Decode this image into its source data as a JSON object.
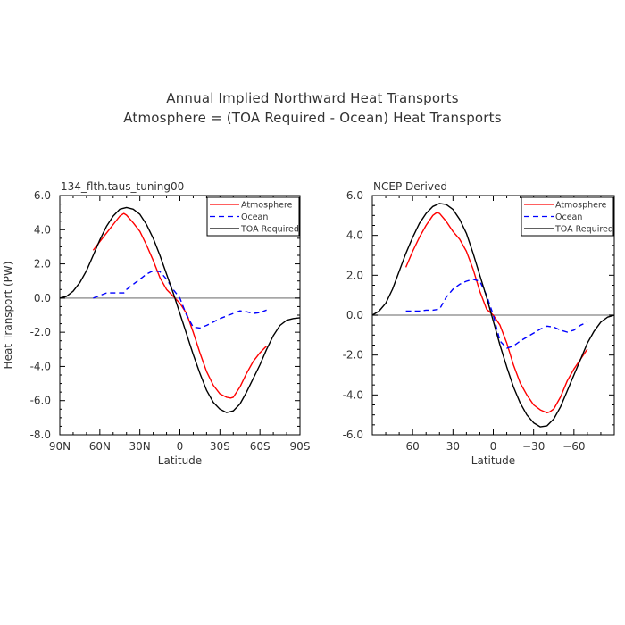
{
  "figure": {
    "title_line1": "Annual Implied Northward Heat Transports",
    "title_line2": "Atmosphere = (TOA Required - Ocean) Heat Transports"
  },
  "chart_data": [
    {
      "type": "line",
      "title": "134_flth.taus_tuning00",
      "xlabel": "Latitude",
      "ylabel": "Heat Transport (PW)",
      "xlim": [
        90,
        -90
      ],
      "ylim": [
        -8,
        6
      ],
      "x_ticks": [
        90,
        60,
        30,
        0,
        -30,
        -60,
        -90
      ],
      "x_tick_labels": [
        "90N",
        "60N",
        "30N",
        "0",
        "30S",
        "60S",
        "90S"
      ],
      "y_ticks": [
        -8,
        -6,
        -4,
        -2,
        0,
        2,
        4,
        6
      ],
      "y_tick_labels": [
        "-8.0",
        "-6.0",
        "-4.0",
        "-2.0",
        "0.0",
        "2.0",
        "4.0",
        "6.0"
      ],
      "legend_position": "top-right",
      "zero_line": true,
      "series": [
        {
          "name": "Atmosphere",
          "color": "#ff0000",
          "dash": "solid",
          "x": [
            65,
            60,
            55,
            50,
            45,
            42,
            40,
            35,
            30,
            25,
            20,
            15,
            10,
            5,
            0,
            -5,
            -10,
            -15,
            -20,
            -25,
            -30,
            -35,
            -38,
            -40,
            -45,
            -50,
            -55,
            -60,
            -65
          ],
          "y": [
            2.8,
            3.3,
            3.8,
            4.3,
            4.8,
            4.95,
            4.85,
            4.4,
            3.9,
            3.1,
            2.2,
            1.2,
            0.5,
            0.1,
            -0.3,
            -0.9,
            -2.0,
            -3.2,
            -4.3,
            -5.1,
            -5.6,
            -5.8,
            -5.85,
            -5.8,
            -5.2,
            -4.4,
            -3.7,
            -3.2,
            -2.8
          ]
        },
        {
          "name": "Ocean",
          "color": "#0000ff",
          "dash": "dashed",
          "x": [
            65,
            60,
            55,
            50,
            45,
            42,
            40,
            35,
            30,
            25,
            20,
            15,
            10,
            5,
            0,
            -5,
            -10,
            -15,
            -20,
            -25,
            -30,
            -35,
            -40,
            -45,
            -50,
            -55,
            -60,
            -65
          ],
          "y": [
            0.0,
            0.15,
            0.3,
            0.3,
            0.3,
            0.3,
            0.5,
            0.8,
            1.1,
            1.4,
            1.6,
            1.55,
            1.1,
            0.5,
            0.0,
            -1.0,
            -1.7,
            -1.75,
            -1.6,
            -1.4,
            -1.2,
            -1.05,
            -0.9,
            -0.75,
            -0.8,
            -0.9,
            -0.85,
            -0.7
          ]
        },
        {
          "name": "TOA Required",
          "color": "#000000",
          "dash": "solid",
          "x": [
            90,
            85,
            80,
            75,
            70,
            65,
            60,
            55,
            50,
            45,
            40,
            35,
            30,
            25,
            20,
            15,
            10,
            5,
            0,
            -5,
            -10,
            -15,
            -20,
            -25,
            -30,
            -35,
            -40,
            -45,
            -50,
            -55,
            -60,
            -65,
            -70,
            -75,
            -80,
            -85,
            -90
          ],
          "y": [
            0.0,
            0.1,
            0.4,
            0.9,
            1.6,
            2.5,
            3.4,
            4.2,
            4.8,
            5.2,
            5.3,
            5.2,
            4.9,
            4.3,
            3.5,
            2.5,
            1.4,
            0.3,
            -0.9,
            -2.1,
            -3.3,
            -4.4,
            -5.4,
            -6.1,
            -6.5,
            -6.7,
            -6.6,
            -6.2,
            -5.5,
            -4.7,
            -3.9,
            -3.0,
            -2.2,
            -1.6,
            -1.3,
            -1.2,
            -1.15
          ]
        }
      ]
    },
    {
      "type": "line",
      "title": "NCEP Derived",
      "xlabel": "Latitude",
      "ylabel": "",
      "xlim": [
        90,
        -90
      ],
      "ylim": [
        -6,
        6
      ],
      "x_ticks": [
        60,
        30,
        0,
        -30,
        -60
      ],
      "x_tick_labels": [
        "60",
        "30",
        "0",
        "−30",
        "−60"
      ],
      "y_ticks": [
        -6,
        -4,
        -2,
        0,
        2,
        4,
        6
      ],
      "y_tick_labels": [
        "-6.0",
        "-4.0",
        "-2.0",
        "0.0",
        "2.0",
        "4.0",
        "6.0"
      ],
      "legend_position": "top-right",
      "zero_line": true,
      "series": [
        {
          "name": "Atmosphere",
          "color": "#ff0000",
          "dash": "solid",
          "x": [
            65,
            60,
            55,
            50,
            45,
            42,
            40,
            35,
            30,
            25,
            20,
            15,
            10,
            5,
            0,
            -5,
            -10,
            -15,
            -20,
            -25,
            -30,
            -35,
            -40,
            -42,
            -45,
            -50,
            -55,
            -60,
            -65,
            -70
          ],
          "y": [
            2.4,
            3.2,
            3.9,
            4.5,
            5.0,
            5.15,
            5.1,
            4.7,
            4.2,
            3.8,
            3.2,
            2.3,
            1.2,
            0.3,
            0.0,
            -0.5,
            -1.4,
            -2.5,
            -3.4,
            -4.0,
            -4.5,
            -4.75,
            -4.9,
            -4.85,
            -4.7,
            -4.1,
            -3.3,
            -2.7,
            -2.2,
            -1.7
          ]
        },
        {
          "name": "Ocean",
          "color": "#0000ff",
          "dash": "dashed",
          "x": [
            65,
            60,
            55,
            50,
            45,
            40,
            35,
            30,
            25,
            20,
            15,
            10,
            5,
            0,
            -5,
            -10,
            -15,
            -20,
            -25,
            -30,
            -35,
            -40,
            -45,
            -50,
            -55,
            -60,
            -65,
            -70
          ],
          "y": [
            0.2,
            0.2,
            0.2,
            0.25,
            0.25,
            0.3,
            0.9,
            1.3,
            1.55,
            1.7,
            1.8,
            1.7,
            1.0,
            0.0,
            -1.3,
            -1.65,
            -1.55,
            -1.3,
            -1.1,
            -0.9,
            -0.7,
            -0.55,
            -0.6,
            -0.75,
            -0.85,
            -0.75,
            -0.5,
            -0.35
          ]
        },
        {
          "name": "TOA Required",
          "color": "#000000",
          "dash": "solid",
          "x": [
            90,
            85,
            80,
            75,
            70,
            65,
            60,
            55,
            50,
            45,
            40,
            35,
            30,
            25,
            20,
            15,
            10,
            5,
            0,
            -5,
            -10,
            -15,
            -20,
            -25,
            -30,
            -35,
            -40,
            -45,
            -50,
            -55,
            -60,
            -65,
            -70,
            -75,
            -80,
            -85,
            -90
          ],
          "y": [
            0.0,
            0.2,
            0.6,
            1.3,
            2.2,
            3.1,
            3.9,
            4.6,
            5.1,
            5.45,
            5.6,
            5.55,
            5.3,
            4.8,
            4.1,
            3.1,
            2.0,
            0.9,
            -0.3,
            -1.5,
            -2.6,
            -3.6,
            -4.4,
            -5.0,
            -5.4,
            -5.6,
            -5.55,
            -5.2,
            -4.6,
            -3.8,
            -3.0,
            -2.2,
            -1.4,
            -0.8,
            -0.35,
            -0.1,
            0.0
          ]
        }
      ]
    }
  ]
}
